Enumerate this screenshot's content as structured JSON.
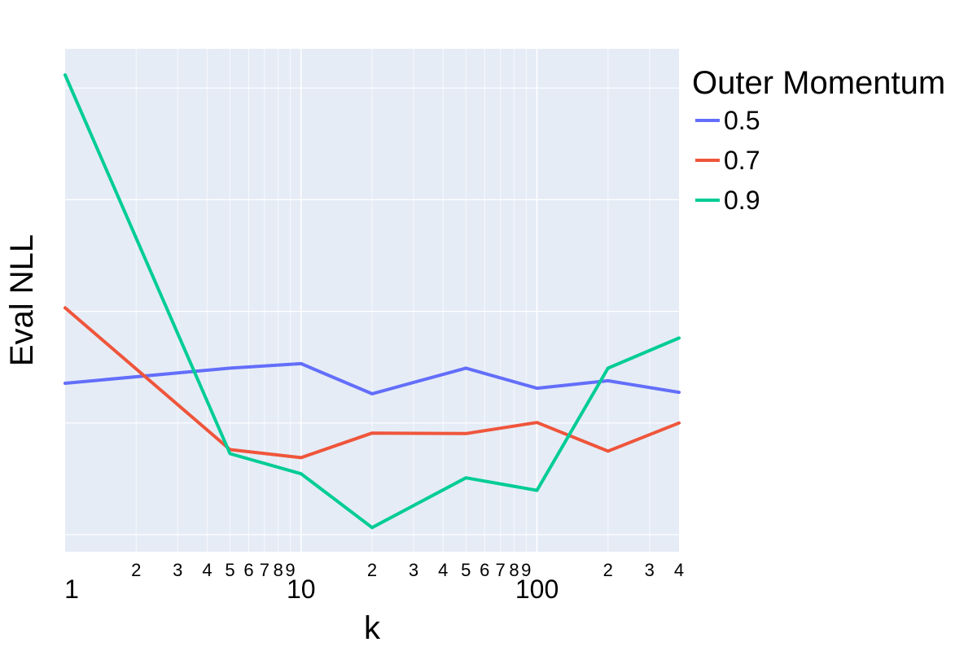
{
  "chart_data": {
    "type": "line",
    "xlabel": "k",
    "ylabel": "Eval NLL",
    "x_scale": "log",
    "xlim": [
      1,
      400
    ],
    "ylim": [
      0,
      1
    ],
    "x_major_tick_labels": [
      {
        "value": 1,
        "label": "1"
      },
      {
        "value": 10,
        "label": "10"
      },
      {
        "value": 100,
        "label": "100"
      }
    ],
    "x_minor_tick_labels": [
      {
        "value": 2,
        "label": "2"
      },
      {
        "value": 3,
        "label": "3"
      },
      {
        "value": 4,
        "label": "4"
      },
      {
        "value": 5,
        "label": "5"
      },
      {
        "value": 6,
        "label": "6"
      },
      {
        "value": 7,
        "label": "7"
      },
      {
        "value": 8,
        "label": "8"
      },
      {
        "value": 9,
        "label": "9"
      },
      {
        "value": 20,
        "label": "2"
      },
      {
        "value": 30,
        "label": "3"
      },
      {
        "value": 40,
        "label": "4"
      },
      {
        "value": 50,
        "label": "5"
      },
      {
        "value": 60,
        "label": "6"
      },
      {
        "value": 70,
        "label": "7"
      },
      {
        "value": 80,
        "label": "8"
      },
      {
        "value": 90,
        "label": "9"
      },
      {
        "value": 200,
        "label": "2"
      },
      {
        "value": 300,
        "label": "3"
      },
      {
        "value": 400,
        "label": "4"
      }
    ],
    "y_gridlines": [
      0.034,
      0.256,
      0.478,
      0.7,
      0.922
    ],
    "grid": true,
    "legend": {
      "title": "Outer Momentum",
      "placement": "right"
    },
    "series": [
      {
        "name": "0.5",
        "color": "#636efa",
        "x": [
          1,
          5,
          10,
          20,
          50,
          100,
          200,
          400
        ],
        "y": [
          0.335,
          0.365,
          0.374,
          0.314,
          0.365,
          0.325,
          0.34,
          0.317
        ]
      },
      {
        "name": "0.7",
        "color": "#ef553b",
        "x": [
          1,
          5,
          10,
          20,
          50,
          100,
          200,
          400
        ],
        "y": [
          0.485,
          0.203,
          0.187,
          0.236,
          0.235,
          0.257,
          0.2,
          0.256
        ]
      },
      {
        "name": "0.9",
        "color": "#00cc96",
        "x": [
          1,
          5,
          10,
          20,
          50,
          100,
          200,
          400
        ],
        "y": [
          0.948,
          0.195,
          0.155,
          0.048,
          0.147,
          0.122,
          0.365,
          0.425
        ]
      }
    ]
  }
}
